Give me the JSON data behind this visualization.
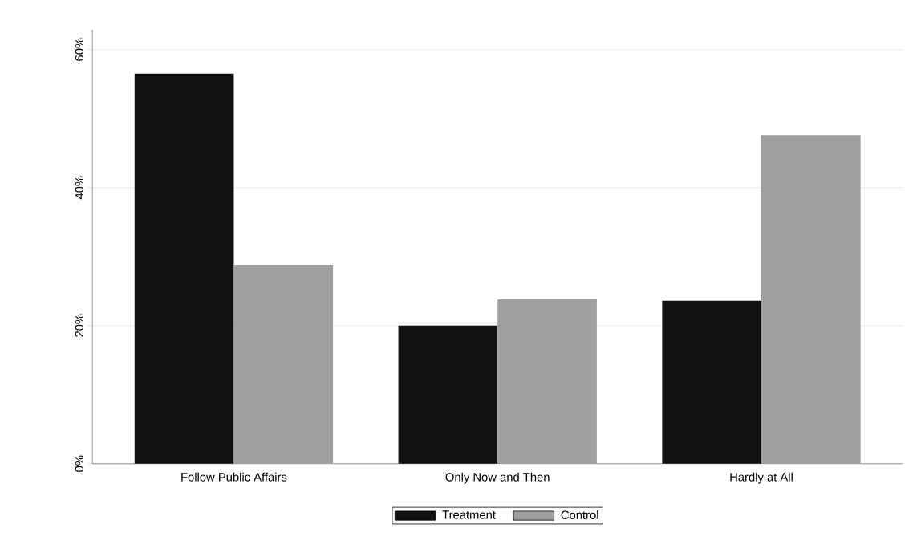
{
  "chart_data": {
    "type": "bar",
    "categories": [
      "Follow Public Affairs",
      "Only Now and Then",
      "Hardly at All"
    ],
    "series": [
      {
        "name": "Treatment",
        "color": "#111111",
        "values": [
          56.5,
          20.0,
          23.6
        ]
      },
      {
        "name": "Control",
        "color": "#a0a0a0",
        "values": [
          28.8,
          23.8,
          47.6
        ]
      }
    ],
    "ylim": [
      0,
      62.8
    ],
    "yticks": [
      {
        "value": 0,
        "label": "0%"
      },
      {
        "value": 20,
        "label": "20%"
      },
      {
        "value": 40,
        "label": "40%"
      },
      {
        "value": 60,
        "label": "60%"
      }
    ],
    "grid": "y",
    "legend": "bottom"
  }
}
